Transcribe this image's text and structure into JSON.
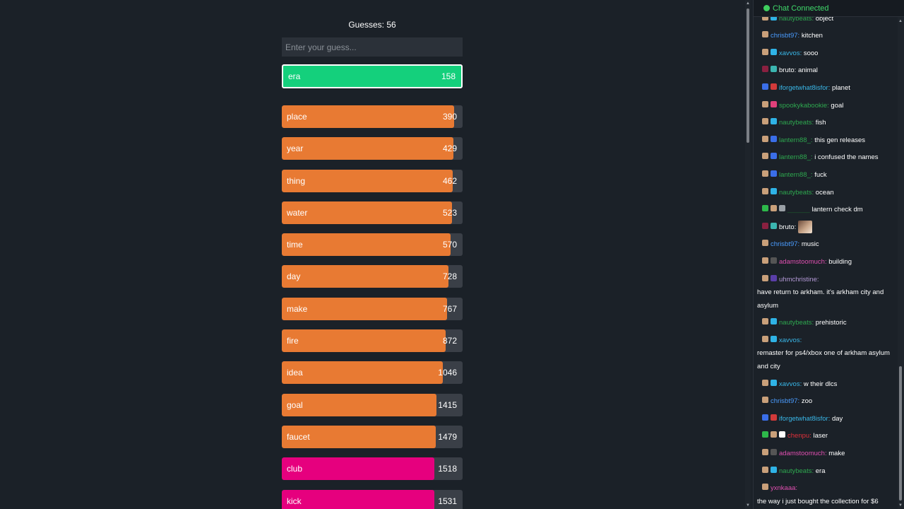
{
  "game": {
    "guess_count_label": "Guesses: 56",
    "input_placeholder": "Enter your guess...",
    "current_guess": {
      "word": "era",
      "rank": "158",
      "color": "#14d07c"
    },
    "guesses": [
      {
        "word": "place",
        "rank": "390",
        "fill": 0.955,
        "color": "#e87a33"
      },
      {
        "word": "year",
        "rank": "429",
        "fill": 0.95,
        "color": "#e87a33"
      },
      {
        "word": "thing",
        "rank": "462",
        "fill": 0.946,
        "color": "#e87a33"
      },
      {
        "word": "water",
        "rank": "523",
        "fill": 0.94,
        "color": "#e87a33"
      },
      {
        "word": "time",
        "rank": "570",
        "fill": 0.935,
        "color": "#e87a33"
      },
      {
        "word": "day",
        "rank": "728",
        "fill": 0.92,
        "color": "#e87a33"
      },
      {
        "word": "make",
        "rank": "767",
        "fill": 0.915,
        "color": "#e87a33"
      },
      {
        "word": "fire",
        "rank": "872",
        "fill": 0.905,
        "color": "#e87a33"
      },
      {
        "word": "idea",
        "rank": "1046",
        "fill": 0.89,
        "color": "#e87a33"
      },
      {
        "word": "goal",
        "rank": "1415",
        "fill": 0.855,
        "color": "#e87a33"
      },
      {
        "word": "faucet",
        "rank": "1479",
        "fill": 0.85,
        "color": "#e87a33"
      },
      {
        "word": "club",
        "rank": "1518",
        "fill": 0.845,
        "color": "#e6007e"
      },
      {
        "word": "kick",
        "rank": "1531",
        "fill": 0.844,
        "color": "#e6007e"
      }
    ]
  },
  "chat": {
    "status": "Chat Connected",
    "messages": [
      {
        "user": "nautybeats:",
        "color": "#2ea84f",
        "badges": [
          "#c9a07a",
          "#2fb3e6"
        ],
        "text": "object"
      },
      {
        "user": "chrisbt97:",
        "color": "#4a9cff",
        "badges": [
          "#c9a07a"
        ],
        "text": "kitchen"
      },
      {
        "user": "xavvos:",
        "color": "#39b7e8",
        "badges": [
          "#c9a07a",
          "#2fb3e6"
        ],
        "text": "sooo"
      },
      {
        "user": "bruto:",
        "color": "#ffffff",
        "badges": [
          "#8a2040",
          "#3bb5b0"
        ],
        "text": "animal"
      },
      {
        "user": "iforgetwhat8isfor:",
        "color": "#39b7e8",
        "badges": [
          "#3a6ee8",
          "#d23a3a"
        ],
        "text": "planet"
      },
      {
        "user": "spookykabookie:",
        "color": "#2ea84f",
        "badges": [
          "#c9a07a",
          "#e0407a"
        ],
        "text": "goal"
      },
      {
        "user": "nautybeats:",
        "color": "#2ea84f",
        "badges": [
          "#c9a07a",
          "#2fb3e6"
        ],
        "text": "fish"
      },
      {
        "user": "lantern88_:",
        "color": "#2ea84f",
        "badges": [
          "#c9a07a",
          "#3a6ee8"
        ],
        "text": "this gen releases"
      },
      {
        "user": "lantern88_:",
        "color": "#2ea84f",
        "badges": [
          "#c9a07a",
          "#3a6ee8"
        ],
        "text": "i confused the names"
      },
      {
        "user": "lantern88_:",
        "color": "#2ea84f",
        "badges": [
          "#c9a07a",
          "#3a6ee8"
        ],
        "text": "fuck"
      },
      {
        "user": "nautybeats:",
        "color": "#2ea84f",
        "badges": [
          "#c9a07a",
          "#2fb3e6"
        ],
        "text": "ocean"
      },
      {
        "user": "______",
        "color": "#1f5c2e",
        "badges": [
          "#2db84a",
          "#c9a07a",
          "#9aa0a6"
        ],
        "text": "lantern check dm"
      },
      {
        "user": "bruto:",
        "color": "#ffffff",
        "badges": [
          "#8a2040",
          "#3bb5b0"
        ],
        "text": "",
        "emote": true
      },
      {
        "user": "chrisbt97:",
        "color": "#4a9cff",
        "badges": [
          "#c9a07a"
        ],
        "text": "music"
      },
      {
        "user": "adamstoomuch:",
        "color": "#e04fb0",
        "badges": [
          "#c9a07a",
          "#555555"
        ],
        "text": "building"
      },
      {
        "user": "uhmchristine:",
        "color": "#b59ad8",
        "badges": [
          "#c9a07a",
          "#5a3ea8"
        ],
        "text": "have return to arkham. it's arkham city and asylum",
        "block": true
      },
      {
        "user": "nautybeats:",
        "color": "#2ea84f",
        "badges": [
          "#c9a07a",
          "#2fb3e6"
        ],
        "text": "prehistoric"
      },
      {
        "user": "xavvos:",
        "color": "#39b7e8",
        "badges": [
          "#c9a07a",
          "#2fb3e6"
        ],
        "text": "remaster for ps4/xbox one of arkham asylum and city",
        "block": true
      },
      {
        "user": "xavvos:",
        "color": "#39b7e8",
        "badges": [
          "#c9a07a",
          "#2fb3e6"
        ],
        "text": "w their dlcs"
      },
      {
        "user": "chrisbt97:",
        "color": "#4a9cff",
        "badges": [
          "#c9a07a"
        ],
        "text": "zoo"
      },
      {
        "user": "iforgetwhat8isfor:",
        "color": "#39b7e8",
        "badges": [
          "#3a6ee8",
          "#d23a3a"
        ],
        "text": "day"
      },
      {
        "user": "chenpu:",
        "color": "#e0303a",
        "badges": [
          "#2db84a",
          "#c9a07a",
          "#ffffff"
        ],
        "text": "laser"
      },
      {
        "user": "adamstoomuch:",
        "color": "#e04fb0",
        "badges": [
          "#c9a07a",
          "#555555"
        ],
        "text": "make"
      },
      {
        "user": "nautybeats:",
        "color": "#2ea84f",
        "badges": [
          "#c9a07a",
          "#2fb3e6"
        ],
        "text": "era"
      },
      {
        "user": "yxnkaaa:",
        "color": "#e04fb0",
        "badges": [
          "#c9a07a"
        ],
        "text": "the way i just bought the collection for $6",
        "block": true
      }
    ]
  }
}
